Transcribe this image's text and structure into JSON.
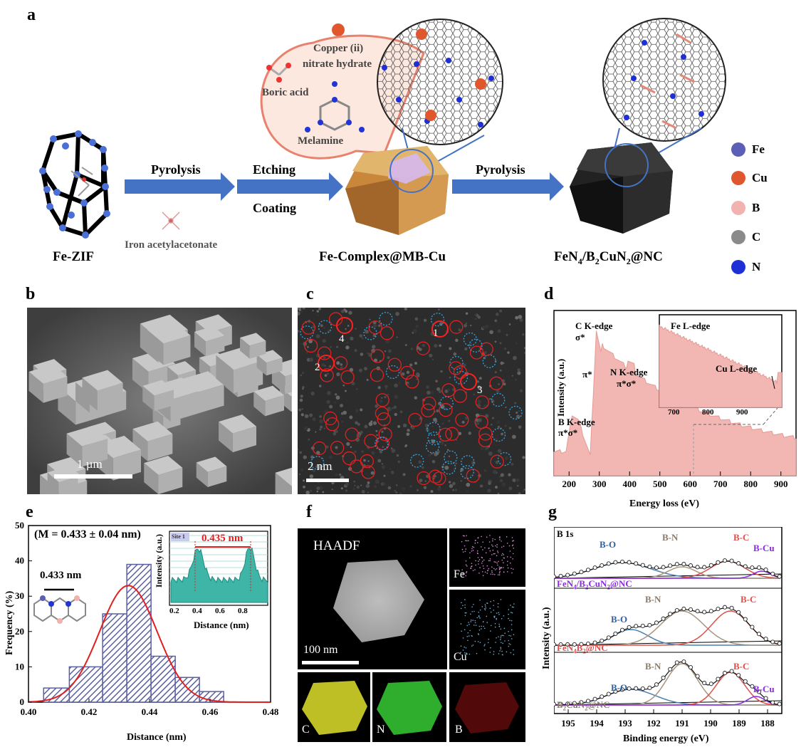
{
  "panel_labels": {
    "a": "a",
    "b": "b",
    "c": "c",
    "d": "d",
    "e": "e",
    "f": "f",
    "g": "g"
  },
  "schematic": {
    "arrow1_label": "Pyrolysis",
    "arrow2_label_top": "Etching",
    "arrow2_label_bottom": "Coating",
    "arrow3_label": "Pyrolysis",
    "reagent_iron": "Iron acetylacetonate",
    "reagent_copper_1": "Copper (ii)",
    "reagent_copper_2": "nitrate hydrate",
    "reagent_boric": "Boric acid",
    "reagent_melamine": "Melamine",
    "name_zif": "Fe-ZIF",
    "name_complex": "Fe-Complex@MB-Cu",
    "name_final_parts": [
      "FeN",
      "4",
      "/B",
      "2",
      "CuN",
      "2",
      "@NC"
    ],
    "legend": [
      {
        "label": "Fe",
        "color": "#5b5fb5"
      },
      {
        "label": "Cu",
        "color": "#e0572e"
      },
      {
        "label": "B",
        "color": "#f2b3b0"
      },
      {
        "label": "C",
        "color": "#8a8a8a"
      },
      {
        "label": "N",
        "color": "#1f2fd6"
      }
    ]
  },
  "sem": {
    "scale_bar": "1 µm"
  },
  "haadf_c": {
    "scale_bar": "2 nm",
    "site_numbers": [
      "1",
      "2",
      "3",
      "4"
    ]
  },
  "eels": {
    "xlabel": "Energy loss (eV)",
    "ylabel": "Intensity (a.u.)",
    "x_ticks": [
      "200",
      "300",
      "400",
      "500",
      "600",
      "700",
      "800",
      "900"
    ],
    "ann_c_edge": "C  K-edge",
    "ann_c_sigma": "σ*",
    "ann_c_pi": "π*",
    "ann_n_edge": "N  K-edge",
    "ann_n_pisigma": "π*σ*",
    "ann_b_edge": "B  K-edge",
    "ann_b_pisigma": "π*σ*",
    "inset_fe": "Fe  L-edge",
    "inset_cu": "Cu  L-edge",
    "inset_ticks": [
      "700",
      "800",
      "900"
    ]
  },
  "hist": {
    "annotation": "(M = 0.433 ± 0.04 nm)",
    "bond_label": "0.433 nm",
    "xlabel": "Distance (nm)",
    "ylabel": "Frequency (%)",
    "x_ticks": [
      "0.40",
      "0.42",
      "0.44",
      "0.46",
      "0.48"
    ],
    "y_ticks": [
      "0",
      "10",
      "20",
      "30",
      "40",
      "50"
    ],
    "inset_site": "Site 1",
    "inset_value": "0.435 nm",
    "inset_xlabel": "Distance (nm)",
    "inset_ylabel": "Intensity (a.u.)",
    "inset_ticks": [
      "0.2",
      "0.4",
      "0.6",
      "0.8"
    ]
  },
  "maps": {
    "haadf": "HAADF",
    "scale": "100 nm",
    "fe": "Fe",
    "cu": "Cu",
    "c": "C",
    "n": "N",
    "b": "B"
  },
  "xps": {
    "title": "B 1s",
    "xlabel": "Binding energy (eV)",
    "ylabel": "Intensity (a.u.)",
    "x_ticks": [
      "195",
      "194",
      "193",
      "192",
      "191",
      "190",
      "189",
      "188"
    ],
    "top_labels": [
      "B-O",
      "B-N",
      "B-C",
      "B-Cu"
    ],
    "mid_sample_parts": [
      "FeN",
      "4",
      "/B",
      "2",
      "CuN",
      "2",
      "@NC"
    ],
    "mid_labels": [
      "B-O",
      "B-N",
      "B-C"
    ],
    "mid_sample2_parts": [
      "FeN",
      "4",
      "B",
      "2",
      "@NC"
    ],
    "bot_labels": [
      "B-O",
      "B-N",
      "B-C",
      "B-Cu"
    ],
    "bot_sample_parts": [
      "B",
      "2",
      "CuN",
      "2",
      "@NC"
    ]
  },
  "chart_data": [
    {
      "type": "bar",
      "panel": "e",
      "xlabel": "Distance (nm)",
      "ylabel": "Frequency (%)",
      "xlim": [
        0.4,
        0.48
      ],
      "ylim": [
        0,
        50
      ],
      "bin_edges": [
        0.405,
        0.4135,
        0.4245,
        0.4325,
        0.4405,
        0.4485,
        0.4565,
        0.4645
      ],
      "values": [
        4,
        10,
        25,
        39,
        13,
        7,
        3
      ]
    }
  ],
  "colors": {
    "eels_fill": "#f3b7b3",
    "hist_fill": "#5a5fa0",
    "gauss": "#e02020",
    "hfill": "#3fb5a8",
    "xps_fit": "#111111"
  }
}
